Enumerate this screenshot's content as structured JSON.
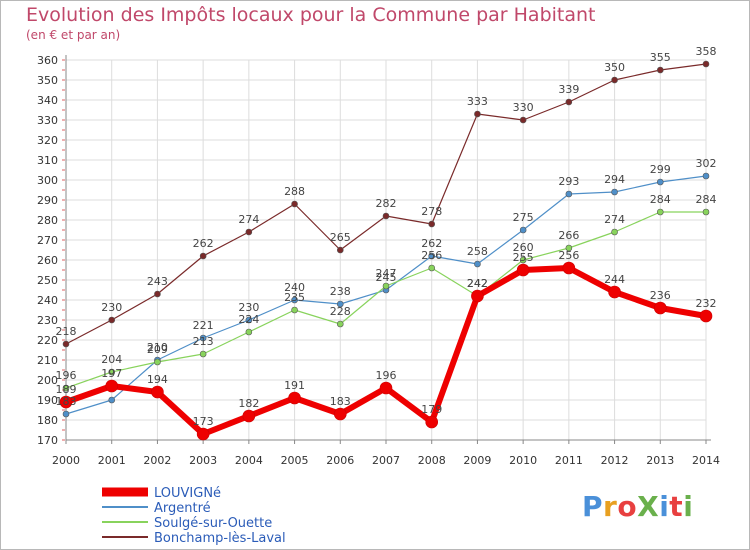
{
  "title": "Evolution des Impôts locaux pour la Commune par Habitant",
  "subtitle": "(en € et par an)",
  "logo": {
    "text": "ProXiti",
    "colors": [
      "#4a90d9",
      "#e8a020",
      "#e84040",
      "#6ab04c",
      "#4a90d9",
      "#e84040",
      "#6ab04c"
    ]
  },
  "chart_data": {
    "type": "line",
    "x": [
      "2000",
      "2001",
      "2002",
      "2003",
      "2004",
      "2005",
      "2006",
      "2007",
      "2008",
      "2009",
      "2010",
      "2011",
      "2012",
      "2013",
      "2014"
    ],
    "ylim": [
      170,
      360
    ],
    "yticks": [
      170,
      180,
      190,
      200,
      210,
      220,
      230,
      240,
      250,
      260,
      270,
      280,
      290,
      300,
      310,
      320,
      330,
      340,
      350,
      360
    ],
    "grid": true,
    "legend_position": "bottom-left",
    "series": [
      {
        "name": "Bonchamp-lès-Laval",
        "color": "#7a2a2a",
        "width": 1.2,
        "values": [
          218,
          230,
          243,
          262,
          274,
          288,
          265,
          282,
          278,
          333,
          330,
          339,
          350,
          355,
          358
        ],
        "labels": [
          "218",
          "230",
          "243",
          "262",
          "274",
          "288",
          "265",
          "282",
          "278",
          "333",
          "330",
          "339",
          "350",
          "355",
          "358"
        ]
      },
      {
        "name": "Argentré",
        "color": "#4f8fc8",
        "width": 1.2,
        "values": [
          183,
          190,
          210,
          221,
          230,
          240,
          238,
          245,
          262,
          258,
          275,
          293,
          294,
          299,
          302
        ],
        "labels": [
          "183",
          "",
          "210",
          "221",
          "230",
          "240",
          "238",
          "245",
          "262",
          "258",
          "275",
          "293",
          "294",
          "299",
          "302"
        ]
      },
      {
        "name": "Soulgé-sur-Ouette",
        "color": "#88d35c",
        "width": 1.2,
        "values": [
          196,
          204,
          209,
          213,
          224,
          235,
          228,
          247,
          256,
          242,
          260,
          266,
          274,
          284,
          284
        ],
        "labels": [
          "196",
          "204",
          "209",
          "213",
          "224",
          "235",
          "228",
          "247",
          "256",
          "242",
          "260",
          "266",
          "274",
          "284",
          "284"
        ]
      },
      {
        "name": "LOUVIGNé",
        "color": "#ee0000",
        "width": 6,
        "values": [
          189,
          197,
          194,
          173,
          182,
          191,
          183,
          196,
          179,
          242,
          255,
          256,
          244,
          236,
          232
        ],
        "labels": [
          "189",
          "197",
          "194",
          "173",
          "182",
          "191",
          "183",
          "196",
          "179",
          "242",
          "255",
          "256",
          "244",
          "236",
          "232"
        ]
      }
    ],
    "legend_order": [
      "LOUVIGNé",
      "Argentré",
      "Soulgé-sur-Ouette",
      "Bonchamp-lès-Laval"
    ]
  }
}
